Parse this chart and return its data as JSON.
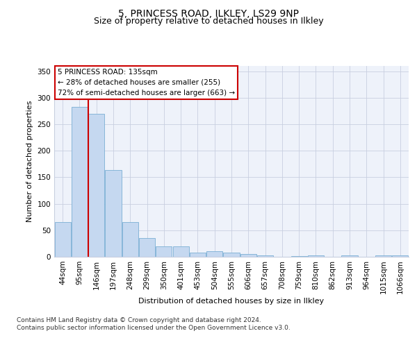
{
  "title": "5, PRINCESS ROAD, ILKLEY, LS29 9NP",
  "subtitle": "Size of property relative to detached houses in Ilkley",
  "xlabel": "Distribution of detached houses by size in Ilkley",
  "ylabel": "Number of detached properties",
  "categories": [
    "44sqm",
    "95sqm",
    "146sqm",
    "197sqm",
    "248sqm",
    "299sqm",
    "350sqm",
    "401sqm",
    "453sqm",
    "504sqm",
    "555sqm",
    "606sqm",
    "657sqm",
    "708sqm",
    "759sqm",
    "810sqm",
    "862sqm",
    "913sqm",
    "964sqm",
    "1015sqm",
    "1066sqm"
  ],
  "values": [
    65,
    283,
    270,
    163,
    65,
    35,
    20,
    20,
    8,
    10,
    8,
    5,
    3,
    0,
    1,
    3,
    0,
    3,
    0,
    3,
    3
  ],
  "bar_color": "#c5d8f0",
  "bar_edge_color": "#7aafd4",
  "vline_color": "#cc0000",
  "vline_index": 2,
  "annotation_text": "5 PRINCESS ROAD: 135sqm\n← 28% of detached houses are smaller (255)\n72% of semi-detached houses are larger (663) →",
  "annotation_box_color": "#ffffff",
  "annotation_box_edge_color": "#cc0000",
  "ylim": [
    0,
    360
  ],
  "yticks": [
    0,
    50,
    100,
    150,
    200,
    250,
    300,
    350
  ],
  "footer": "Contains HM Land Registry data © Crown copyright and database right 2024.\nContains public sector information licensed under the Open Government Licence v3.0.",
  "title_fontsize": 10,
  "subtitle_fontsize": 9,
  "axis_label_fontsize": 8,
  "tick_fontsize": 7.5,
  "footer_fontsize": 6.5,
  "annotation_fontsize": 7.5
}
